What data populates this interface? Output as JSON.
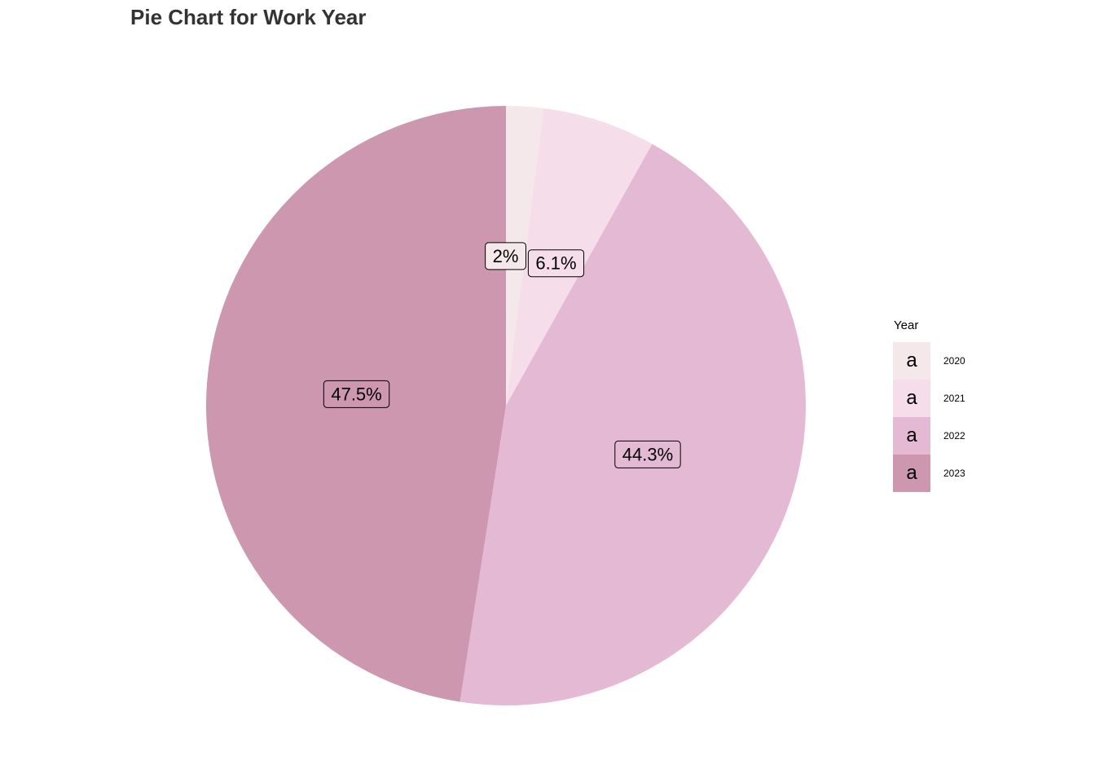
{
  "chart_data": {
    "type": "pie",
    "title": "Pie Chart for Work Year",
    "legend_title": "Year",
    "legend_position": "right",
    "legend_key_glyph": "a",
    "start_angle": "top, clockwise",
    "slices": [
      {
        "name": "2020",
        "value": 2.0,
        "label": "2%",
        "color": "#F5E8EA"
      },
      {
        "name": "2021",
        "value": 6.1,
        "label": "6.1%",
        "color": "#F5DEEA"
      },
      {
        "name": "2022",
        "value": 44.3,
        "label": "44.3%",
        "color": "#E4B9D4"
      },
      {
        "name": "2023",
        "value": 47.5,
        "label": "47.5%",
        "color": "#CC97AF"
      }
    ]
  }
}
